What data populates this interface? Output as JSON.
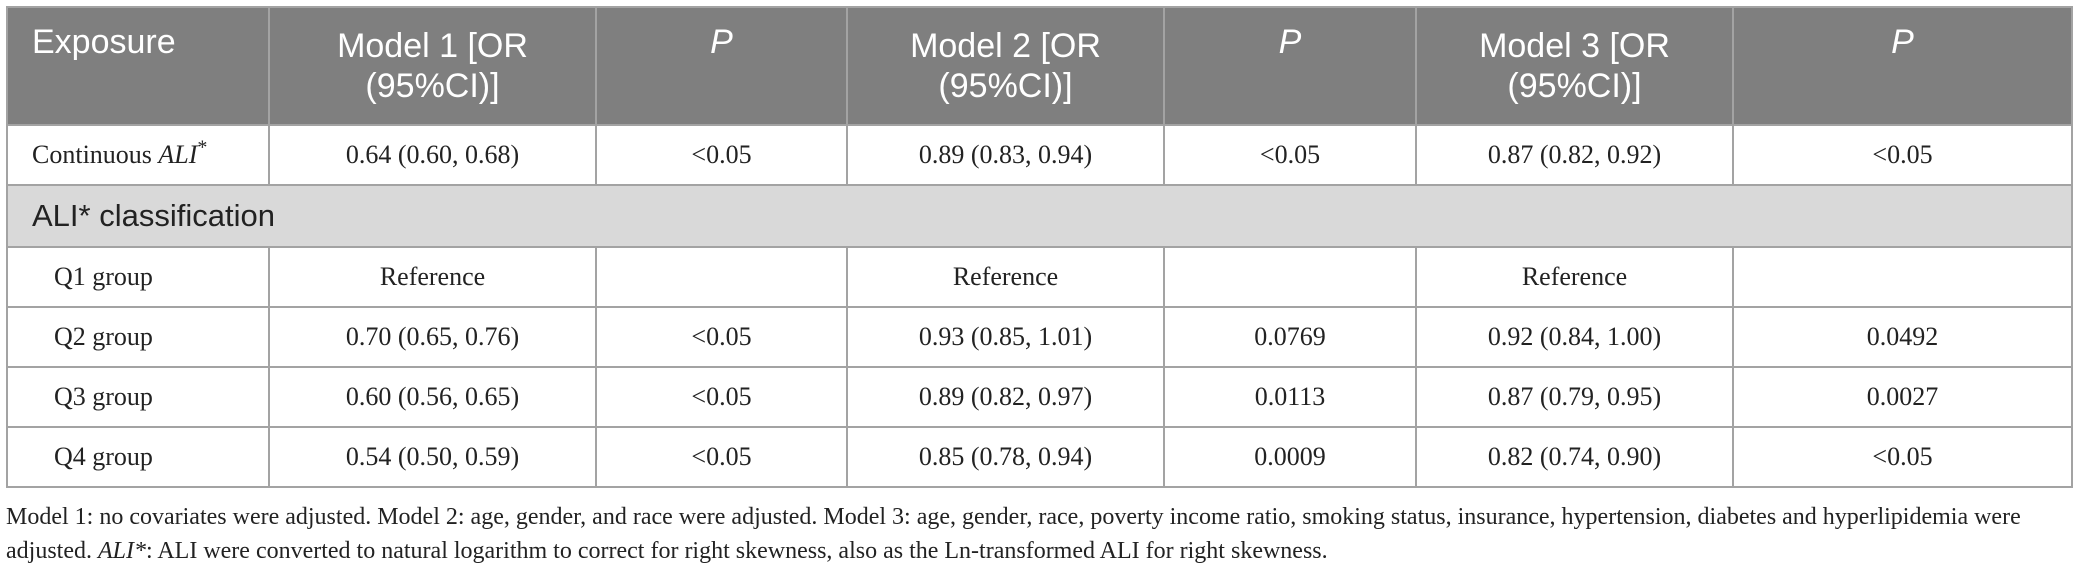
{
  "table": {
    "headers": {
      "exposure": "Exposure",
      "model1": "Model 1 [OR (95%CI)]",
      "p1": "P",
      "model2": "Model 2 [OR (95%CI)]",
      "p2": "P",
      "model3": "Model 3 [OR (95%CI)]",
      "p3": "P"
    },
    "continuous": {
      "label_text": "Continuous ",
      "label_italic": "ALI",
      "label_sup": "*",
      "m1": "0.64 (0.60, 0.68)",
      "p1": "<0.05",
      "m2": "0.89 (0.83, 0.94)",
      "p2": "<0.05",
      "m3": "0.87 (0.82, 0.92)",
      "p3": "<0.05"
    },
    "section_label": "ALI* classification",
    "groups": [
      {
        "label": "Q1 group",
        "m1": "Reference",
        "p1": "",
        "m2": "Reference",
        "p2": "",
        "m3": "Reference",
        "p3": ""
      },
      {
        "label": "Q2 group",
        "m1": "0.70 (0.65, 0.76)",
        "p1": "<0.05",
        "m2": "0.93 (0.85, 1.01)",
        "p2": "0.0769",
        "m3": "0.92 (0.84, 1.00)",
        "p3": "0.0492"
      },
      {
        "label": "Q3 group",
        "m1": "0.60 (0.56, 0.65)",
        "p1": "<0.05",
        "m2": "0.89 (0.82, 0.97)",
        "p2": "0.0113",
        "m3": "0.87 (0.79, 0.95)",
        "p3": "0.0027"
      },
      {
        "label": "Q4 group",
        "m1": "0.54 (0.50, 0.59)",
        "p1": "<0.05",
        "m2": "0.85 (0.78, 0.94)",
        "p2": "0.0009",
        "m3": "0.82 (0.74, 0.90)",
        "p3": "<0.05"
      }
    ]
  },
  "footnote": {
    "part1": "Model 1: no covariates were adjusted. Model 2: age, gender, and race were adjusted. Model 3: age, gender, race, poverty income ratio, smoking status, insurance, hypertension, diabetes and hyperlipidemia were adjusted. ",
    "italic": "ALI*",
    "part2": ": ALI were converted to natural logarithm to correct for right skewness, also as the Ln-transformed ALI for right skewness."
  },
  "colors": {
    "header_bg": "#7f7f7f",
    "section_bg": "#d9d9d9",
    "border": "#a3a3a3"
  }
}
